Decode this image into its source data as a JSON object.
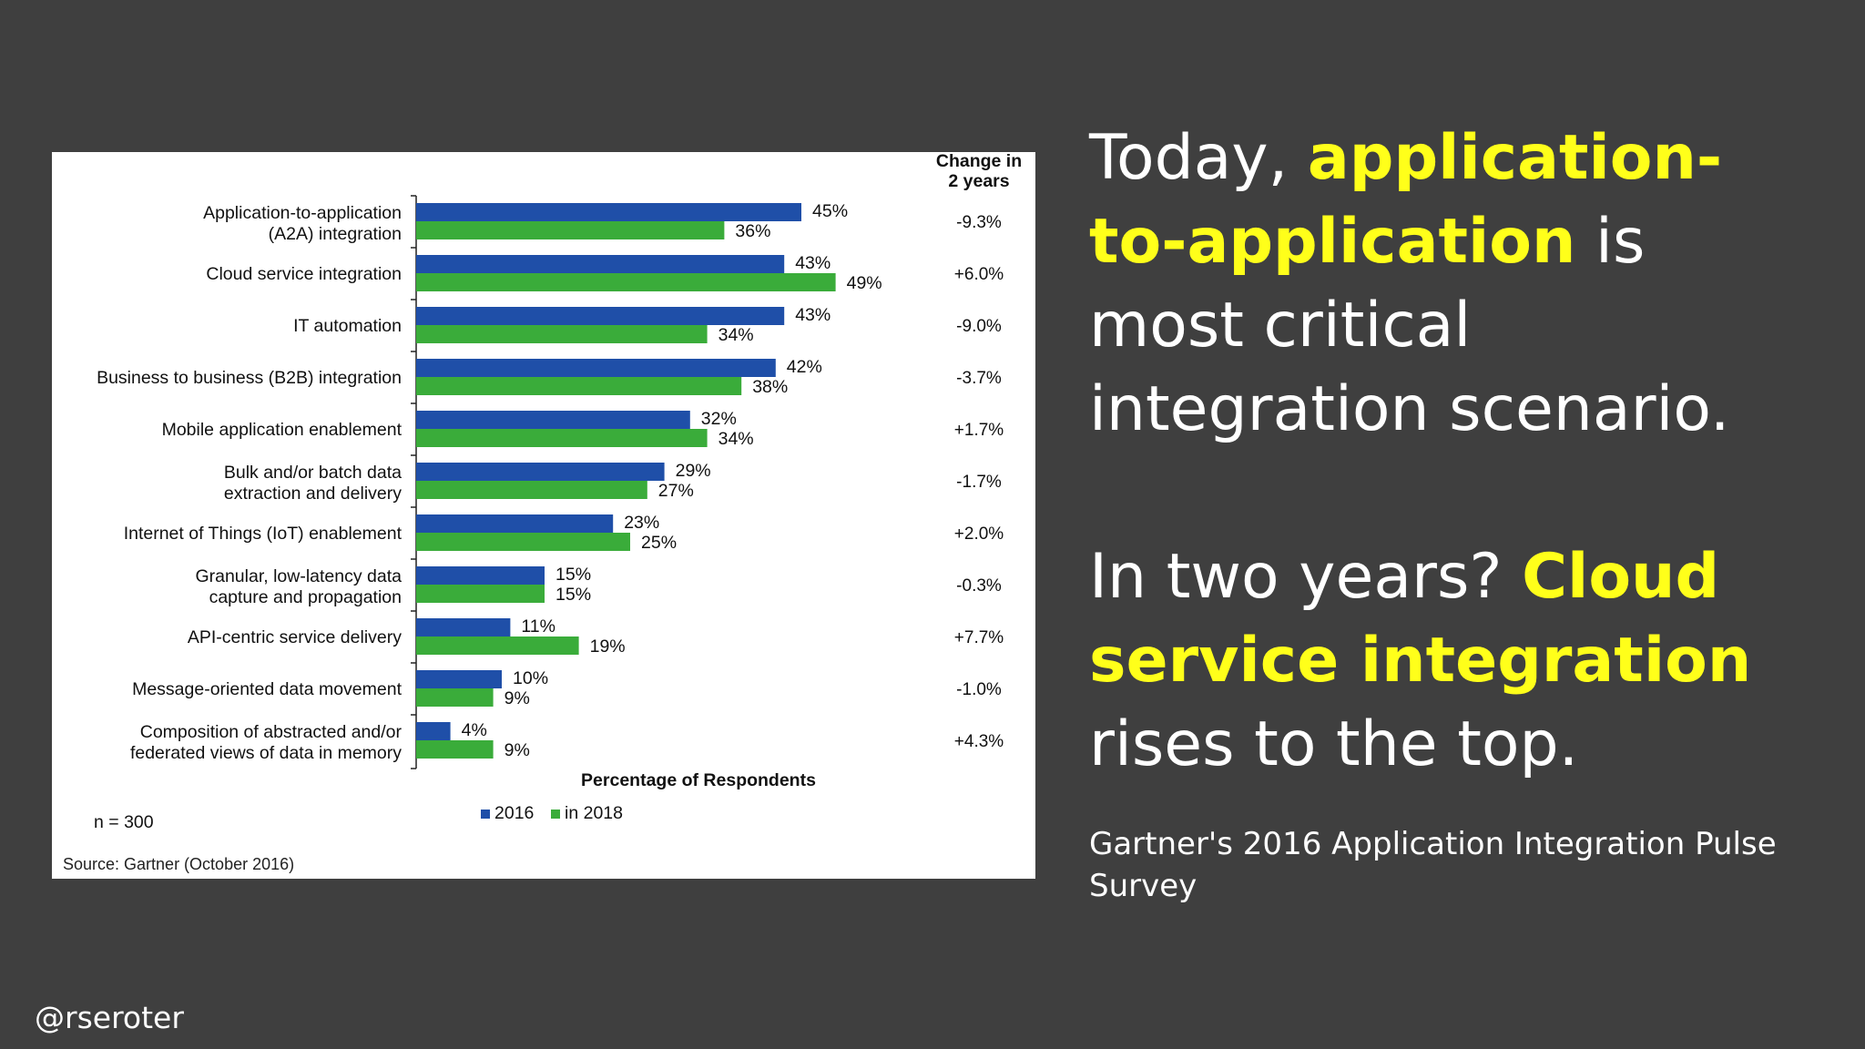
{
  "chart_data": {
    "type": "bar",
    "categories": [
      [
        "Application-to-application",
        "(A2A) integration"
      ],
      [
        "Cloud service integration"
      ],
      [
        "IT automation"
      ],
      [
        "Business to business (B2B) integration"
      ],
      [
        "Mobile application enablement"
      ],
      [
        "Bulk and/or batch data",
        "extraction and delivery"
      ],
      [
        "Internet of Things (IoT) enablement"
      ],
      [
        "Granular, low-latency data",
        "capture and propagation"
      ],
      [
        "API-centric service delivery"
      ],
      [
        "Message-oriented data movement"
      ],
      [
        "Composition of abstracted and/or",
        "federated views of data in memory"
      ]
    ],
    "series": [
      {
        "name": "2016",
        "color": "#1f4fa8",
        "values": [
          45,
          43,
          43,
          42,
          32,
          29,
          23,
          15,
          11,
          10,
          4
        ]
      },
      {
        "name": "in 2018",
        "color": "#3aac3a",
        "values": [
          36,
          49,
          34,
          38,
          34,
          27,
          25,
          15,
          19,
          9,
          9
        ]
      }
    ],
    "value_labels": {
      "2016": [
        "45%",
        "43%",
        "43%",
        "42%",
        "32%",
        "29%",
        "23%",
        "15%",
        "11%",
        "10%",
        "4%"
      ],
      "in 2018": [
        "36%",
        "49%",
        "34%",
        "38%",
        "34%",
        "27%",
        "25%",
        "15%",
        "19%",
        "9%",
        "9%"
      ]
    },
    "change_header": [
      "Change in",
      "2 years"
    ],
    "change_values": [
      "-9.3%",
      "+6.0%",
      "-9.0%",
      "-3.7%",
      "+1.7%",
      "-1.7%",
      "+2.0%",
      "-0.3%",
      "+7.7%",
      "-1.0%",
      "+4.3%"
    ],
    "xlabel": "Percentage of Respondents",
    "xlim": [
      0,
      100
    ],
    "legend_placement": "bottom-center",
    "grid": false,
    "sample_note": "n = 300",
    "source": "Source: Gartner (October 2016)"
  },
  "headline": {
    "p1_pre": "Today, ",
    "p1_hl": "application-to-application",
    "p1_post": " is most critical integration scenario.",
    "p2_pre": "In two years? ",
    "p2_hl": "Cloud service integration",
    "p2_post": " rises to the top."
  },
  "survey_note": "Gartner's 2016 Application Integration Pulse Survey",
  "handle": "@rseroter",
  "colors": {
    "background": "#3f3f3f",
    "highlight": "#ffff1a",
    "text": "#ffffff"
  }
}
